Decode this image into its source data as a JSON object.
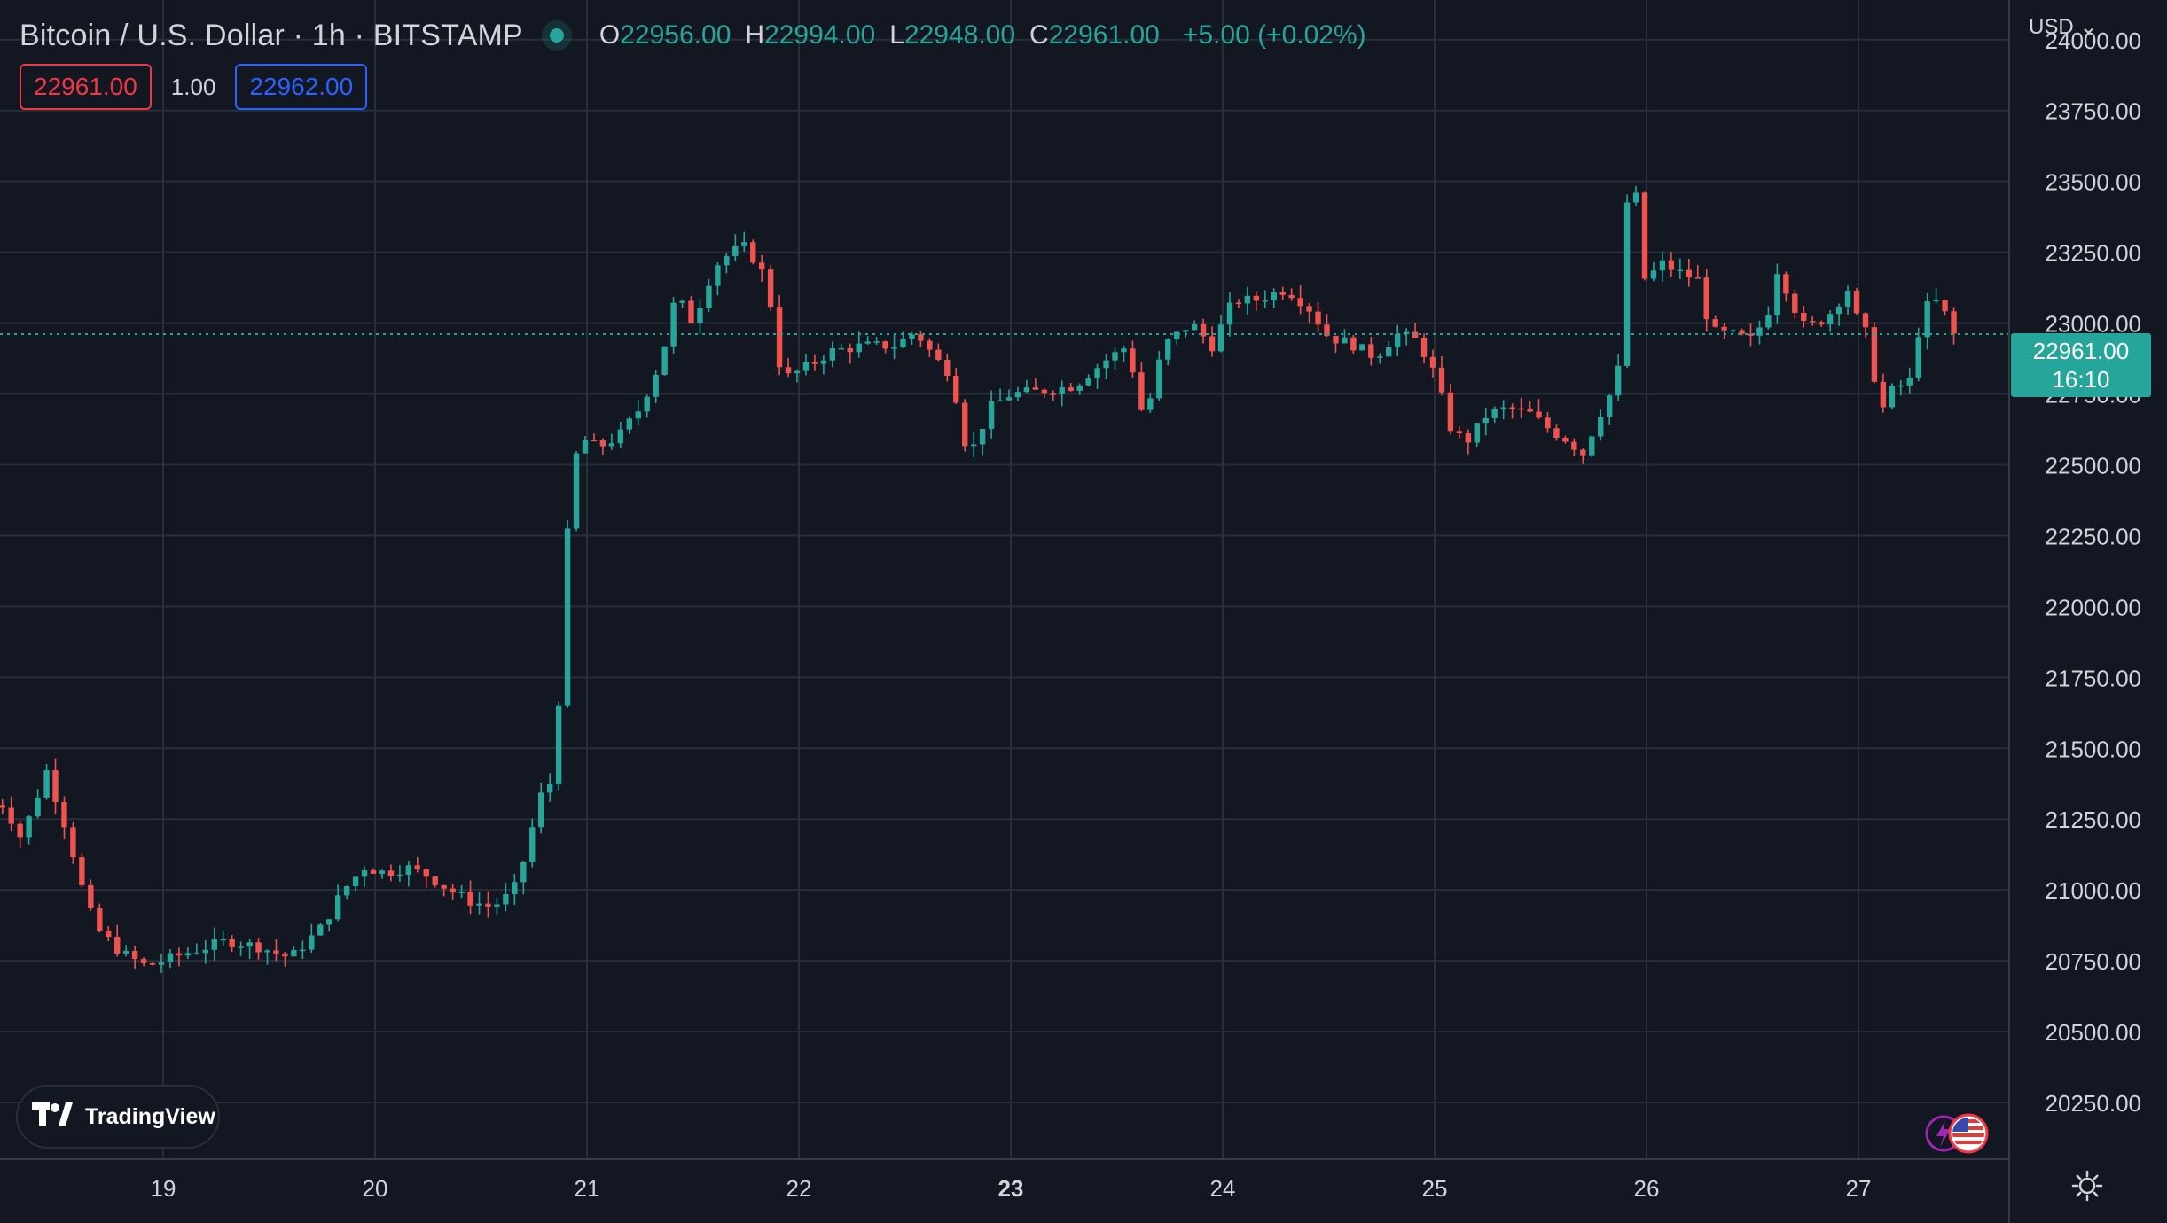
{
  "header": {
    "title": "Bitcoin / U.S. Dollar · 1h · BITSTAMP",
    "ohlc": {
      "o_label": "O",
      "o": "22956.00",
      "h_label": "H",
      "h": "22994.00",
      "l_label": "L",
      "l": "22948.00",
      "c_label": "C",
      "c": "22961.00",
      "change": "+5.00 (+0.02%)"
    }
  },
  "quote": {
    "sell": "22961.00",
    "qty": "1.00",
    "buy": "22962.00"
  },
  "currency": "USD ⌄",
  "last_price": {
    "price": "22961.00",
    "countdown": "16:10"
  },
  "logo_text": "TradingView",
  "colors": {
    "background": "#131722",
    "grid": "#2a2e39",
    "up": "#26a69a",
    "down": "#ef5350",
    "text": "#d1d4dc"
  },
  "chart_data": {
    "type": "candlestick",
    "symbol": "Bitcoin / U.S. Dollar",
    "interval": "1h",
    "exchange": "BITSTAMP",
    "ylim": [
      20050,
      24140
    ],
    "y_ticks": [
      "24000.00",
      "23750.00",
      "23500.00",
      "23250.00",
      "23000.00",
      "22750.00",
      "22500.00",
      "22250.00",
      "22000.00",
      "21750.00",
      "21500.00",
      "21250.00",
      "21000.00",
      "20750.00",
      "20500.00",
      "20250.00"
    ],
    "x_ticks": [
      {
        "label": "19",
        "day": 19,
        "bold": false
      },
      {
        "label": "20",
        "day": 20,
        "bold": false
      },
      {
        "label": "21",
        "day": 21,
        "bold": false
      },
      {
        "label": "22",
        "day": 22,
        "bold": false
      },
      {
        "label": "23",
        "day": 23,
        "bold": true
      },
      {
        "label": "24",
        "day": 24,
        "bold": false
      },
      {
        "label": "25",
        "day": 25,
        "bold": false
      },
      {
        "label": "26",
        "day": 26,
        "bold": false
      },
      {
        "label": "27",
        "day": 27,
        "bold": false
      }
    ],
    "current_price": 22961,
    "close_path": [
      [
        18.25,
        21300
      ],
      [
        18.33,
        21180
      ],
      [
        18.45,
        21420
      ],
      [
        18.55,
        21200
      ],
      [
        18.62,
        21000
      ],
      [
        18.68,
        20870
      ],
      [
        18.8,
        20780
      ],
      [
        18.92,
        20730
      ],
      [
        19.12,
        20780
      ],
      [
        19.3,
        20820
      ],
      [
        19.45,
        20800
      ],
      [
        19.6,
        20760
      ],
      [
        19.75,
        20870
      ],
      [
        19.85,
        21000
      ],
      [
        19.95,
        21080
      ],
      [
        20.05,
        21060
      ],
      [
        20.15,
        21080
      ],
      [
        20.25,
        21050
      ],
      [
        20.35,
        21000
      ],
      [
        20.45,
        20960
      ],
      [
        20.55,
        20940
      ],
      [
        20.65,
        20990
      ],
      [
        20.7,
        21100
      ],
      [
        20.78,
        21330
      ],
      [
        20.85,
        21400
      ],
      [
        20.9,
        22200
      ],
      [
        20.96,
        22600
      ],
      [
        21.05,
        22560
      ],
      [
        21.15,
        22600
      ],
      [
        21.25,
        22700
      ],
      [
        21.35,
        22870
      ],
      [
        21.42,
        23100
      ],
      [
        21.5,
        23000
      ],
      [
        21.6,
        23200
      ],
      [
        21.68,
        23250
      ],
      [
        21.75,
        23270
      ],
      [
        21.85,
        23150
      ],
      [
        21.92,
        22800
      ],
      [
        22.05,
        22850
      ],
      [
        22.15,
        22900
      ],
      [
        22.3,
        22920
      ],
      [
        22.45,
        22920
      ],
      [
        22.55,
        22970
      ],
      [
        22.65,
        22870
      ],
      [
        22.72,
        22820
      ],
      [
        22.8,
        22520
      ],
      [
        22.9,
        22700
      ],
      [
        23.0,
        22750
      ],
      [
        23.15,
        22760
      ],
      [
        23.3,
        22780
      ],
      [
        23.45,
        22870
      ],
      [
        23.55,
        22920
      ],
      [
        23.63,
        22650
      ],
      [
        23.72,
        22920
      ],
      [
        23.85,
        23000
      ],
      [
        23.95,
        22920
      ],
      [
        24.05,
        23080
      ],
      [
        24.15,
        23080
      ],
      [
        24.3,
        23120
      ],
      [
        24.4,
        23060
      ],
      [
        24.5,
        22950
      ],
      [
        24.6,
        22930
      ],
      [
        24.72,
        22880
      ],
      [
        24.82,
        22960
      ],
      [
        24.92,
        22940
      ],
      [
        25.0,
        22820
      ],
      [
        25.08,
        22620
      ],
      [
        25.15,
        22580
      ],
      [
        25.25,
        22680
      ],
      [
        25.35,
        22700
      ],
      [
        25.45,
        22680
      ],
      [
        25.55,
        22620
      ],
      [
        25.62,
        22590
      ],
      [
        25.7,
        22540
      ],
      [
        25.78,
        22680
      ],
      [
        25.85,
        22780
      ],
      [
        25.88,
        22880
      ],
      [
        25.92,
        23650
      ],
      [
        26.0,
        23100
      ],
      [
        26.05,
        23220
      ],
      [
        26.15,
        23180
      ],
      [
        26.25,
        23150
      ],
      [
        26.3,
        22970
      ],
      [
        26.4,
        22960
      ],
      [
        26.5,
        22940
      ],
      [
        26.58,
        23050
      ],
      [
        26.62,
        23200
      ],
      [
        26.68,
        23080
      ],
      [
        26.75,
        22980
      ],
      [
        26.85,
        23020
      ],
      [
        26.95,
        23120
      ],
      [
        27.0,
        23000
      ],
      [
        27.05,
        22950
      ],
      [
        27.1,
        22670
      ],
      [
        27.15,
        22760
      ],
      [
        27.2,
        22780
      ],
      [
        27.25,
        22800
      ],
      [
        27.3,
        23050
      ],
      [
        27.38,
        23080
      ],
      [
        27.45,
        22960
      ]
    ]
  }
}
